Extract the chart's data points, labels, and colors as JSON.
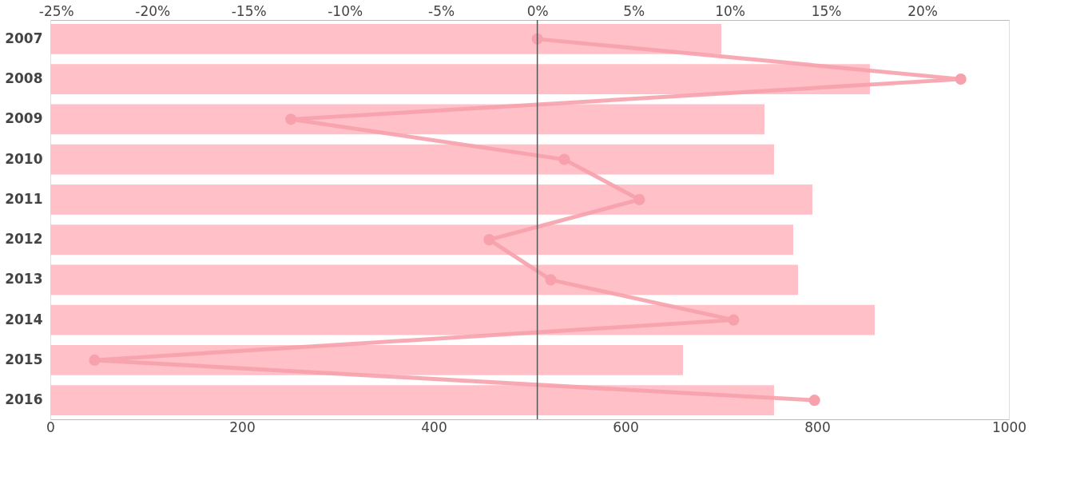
{
  "chart_data": {
    "type": "bar",
    "orientation": "horizontal",
    "categories": [
      "2007",
      "2008",
      "2009",
      "2010",
      "2011",
      "2012",
      "2013",
      "2014",
      "2015",
      "2016"
    ],
    "series": [
      {
        "color": "#ffc0c8",
        "values": [
          700,
          855,
          745,
          755,
          795,
          775,
          780,
          860,
          660,
          755
        ]
      },
      {
        "type": "line",
        "axis": "x2",
        "color": "#f7a1ac",
        "values": [
          0,
          22.0,
          -12.8,
          1.4,
          5.3,
          -2.5,
          0.7,
          10.2,
          -23.0,
          14.4
        ]
      }
    ],
    "xlim": [
      0,
      1000
    ],
    "xticks": [
      0,
      200,
      400,
      600,
      800,
      1000
    ],
    "x2lim": [
      -25.3,
      24.5
    ],
    "x2ticks": [
      {
        "value": -25,
        "label": "-25%"
      },
      {
        "value": -20,
        "label": "-20%"
      },
      {
        "value": -15,
        "label": "-15%"
      },
      {
        "value": -10,
        "label": "-10%"
      },
      {
        "value": -5,
        "label": "-5%"
      },
      {
        "value": 0,
        "label": "0%"
      },
      {
        "value": 5,
        "label": "5%"
      },
      {
        "value": 10,
        "label": "10%"
      },
      {
        "value": 15,
        "label": "15%"
      },
      {
        "value": 20,
        "label": "20%"
      }
    ],
    "ref_lines": [
      {
        "axis": "x2",
        "value": 0,
        "color": "#555555"
      }
    ],
    "marker": "circle",
    "line_style": "solid",
    "grid": false
  }
}
